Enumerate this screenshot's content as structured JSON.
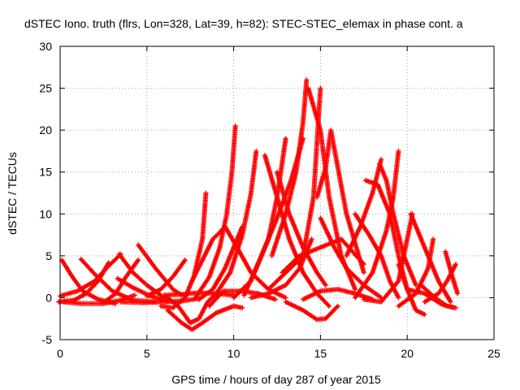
{
  "chart_data": {
    "type": "scatter",
    "title": "dSTEC Iono. truth (flrs, Lon=328, Lat=39, h=82): STEC-STEC_elemax in phase cont. a",
    "xlabel": "GPS time / hours of day 287 of year 2015",
    "ylabel": "dSTEC  / TECUs",
    "xlim": [
      0,
      25
    ],
    "ylim": [
      -5,
      30
    ],
    "xticks": [
      0,
      5,
      10,
      15,
      20,
      25
    ],
    "yticks": [
      -5,
      0,
      5,
      10,
      15,
      20,
      25,
      30
    ],
    "grid": true,
    "marker": "+",
    "marker_color": "#ff0000",
    "series": [
      {
        "x": [
          -0.1,
          0.8,
          1.5,
          2.2,
          2.8
        ],
        "y": [
          -0.5,
          -0.3,
          0.5,
          2.0,
          4.2
        ]
      },
      {
        "x": [
          0.1,
          0.7,
          1.3,
          2.2,
          3.2
        ],
        "y": [
          4.5,
          2.5,
          0.8,
          -0.2,
          -0.7
        ]
      },
      {
        "x": [
          0.0,
          1.0,
          2.0,
          2.8,
          3.5
        ],
        "y": [
          0.2,
          0.8,
          2.0,
          3.8,
          5.2
        ]
      },
      {
        "x": [
          1.2,
          2.0,
          3.0,
          4.2,
          5.5
        ],
        "y": [
          4.6,
          2.8,
          0.8,
          -0.3,
          -0.5
        ]
      },
      {
        "x": [
          0.2,
          1.2,
          2.5,
          3.5,
          4.3
        ],
        "y": [
          -0.5,
          -0.7,
          -0.7,
          -0.3,
          0.3
        ]
      },
      {
        "x": [
          2.5,
          3.2,
          3.8,
          4.5
        ],
        "y": [
          -0.6,
          0.5,
          2.5,
          4.5
        ]
      },
      {
        "x": [
          3.4,
          4.2,
          5.0,
          6.0
        ],
        "y": [
          5.2,
          3.0,
          1.5,
          0.0
        ]
      },
      {
        "x": [
          4.5,
          5.5,
          6.5,
          7.0
        ],
        "y": [
          6.3,
          3.5,
          1.0,
          0.3
        ]
      },
      {
        "x": [
          3.3,
          4.2,
          5.2,
          6.2
        ],
        "y": [
          2.3,
          1.2,
          0.2,
          -0.4
        ]
      },
      {
        "x": [
          5.0,
          5.8,
          6.5,
          7.2
        ],
        "y": [
          0.2,
          1.0,
          2.5,
          4.5
        ]
      },
      {
        "x": [
          3.5,
          4.8,
          6.0,
          7.0,
          8.0
        ],
        "y": [
          -0.5,
          -0.6,
          -0.5,
          -0.4,
          -0.1
        ]
      },
      {
        "x": [
          6.0,
          7.0,
          8.0,
          9.0,
          10.0
        ],
        "y": [
          0.3,
          0.4,
          0.6,
          0.5,
          0.3
        ]
      },
      {
        "x": [
          5.8,
          6.5,
          7.2,
          7.7,
          8.2,
          8.4
        ],
        "y": [
          -1.0,
          -1.2,
          0.0,
          2.5,
          7.0,
          12.5
        ]
      },
      {
        "x": [
          6.0,
          6.8,
          7.5,
          8.0,
          8.5,
          9.0
        ],
        "y": [
          0.3,
          -1.0,
          -3.0,
          -2.5,
          -0.5,
          0.5
        ]
      },
      {
        "x": [
          6.2,
          7.0,
          7.6,
          8.2,
          9.0,
          10.0,
          10.5
        ],
        "y": [
          -1.5,
          -3.0,
          -3.8,
          -3.0,
          -1.8,
          -1.0,
          -1.2
        ]
      },
      {
        "x": [
          8.0,
          8.8,
          9.5,
          10.0,
          10.5
        ],
        "y": [
          -0.2,
          1.0,
          3.5,
          6.0,
          8.5
        ]
      },
      {
        "x": [
          7.8,
          8.6,
          9.2,
          9.6,
          9.9,
          10.1
        ],
        "y": [
          0.0,
          2.5,
          6.0,
          10.0,
          15.0,
          20.5
        ]
      },
      {
        "x": [
          7.6,
          8.2,
          8.8,
          9.2,
          9.5
        ],
        "y": [
          2.0,
          4.5,
          7.0,
          7.8,
          8.5
        ]
      },
      {
        "x": [
          9.5,
          10.2,
          11.0,
          12.0,
          13.0
        ],
        "y": [
          8.5,
          6.0,
          3.0,
          1.0,
          0.0
        ]
      },
      {
        "x": [
          9.0,
          9.8,
          10.5,
          11.0,
          11.3
        ],
        "y": [
          0.5,
          3.0,
          7.5,
          12.5,
          17.5
        ]
      },
      {
        "x": [
          8.6,
          9.4,
          10.4,
          11.4,
          12.4
        ],
        "y": [
          -1.0,
          0.8,
          0.8,
          0.5,
          -0.2
        ]
      },
      {
        "x": [
          10.0,
          11.0,
          12.0,
          12.5,
          13.0
        ],
        "y": [
          0.0,
          2.0,
          7.0,
          12.0,
          19.0
        ]
      },
      {
        "x": [
          10.6,
          11.5,
          12.5,
          13.3,
          14.0
        ],
        "y": [
          0.3,
          4.5,
          9.5,
          14.0,
          19.0
        ]
      },
      {
        "x": [
          12.2,
          13.0,
          13.6,
          14.0,
          14.2
        ],
        "y": [
          5.0,
          10.0,
          15.0,
          21.0,
          26.0
        ]
      },
      {
        "x": [
          11.0,
          12.0,
          13.0,
          13.8,
          14.5
        ],
        "y": [
          0.0,
          0.5,
          1.5,
          3.5,
          7.0
        ]
      },
      {
        "x": [
          12.0,
          13.0,
          14.0,
          14.6,
          15.0
        ],
        "y": [
          1.0,
          3.0,
          5.0,
          12.0,
          25.0
        ]
      },
      {
        "x": [
          11.8,
          12.5,
          13.2,
          14.0,
          14.8,
          15.5
        ],
        "y": [
          17.0,
          12.0,
          7.0,
          3.0,
          0.5,
          -1.0
        ]
      },
      {
        "x": [
          12.5,
          13.2,
          14.0,
          14.8,
          15.3
        ],
        "y": [
          15.0,
          10.0,
          6.0,
          3.0,
          1.5
        ]
      },
      {
        "x": [
          14.3,
          15.0,
          15.5,
          16.2,
          17.0
        ],
        "y": [
          25.0,
          20.0,
          12.0,
          5.0,
          1.0
        ]
      },
      {
        "x": [
          14.8,
          15.3,
          15.6,
          16.5,
          17.5
        ],
        "y": [
          12.0,
          15.5,
          20.0,
          10.0,
          3.0
        ]
      },
      {
        "x": [
          13.0,
          14.0,
          14.8,
          15.3,
          16.0
        ],
        "y": [
          -0.5,
          -1.5,
          -2.6,
          -2.5,
          -1.0
        ]
      },
      {
        "x": [
          12.8,
          13.8,
          15.0,
          16.2,
          17.5
        ],
        "y": [
          3.0,
          5.0,
          6.0,
          7.0,
          4.0
        ]
      },
      {
        "x": [
          15.0,
          15.8,
          16.5,
          17.5,
          18.5
        ],
        "y": [
          9.5,
          6.0,
          3.5,
          1.5,
          0.0
        ]
      },
      {
        "x": [
          14.0,
          15.0,
          16.0,
          17.0,
          18.0
        ],
        "y": [
          -0.2,
          0.8,
          1.0,
          0.5,
          -0.2
        ]
      },
      {
        "x": [
          16.5,
          17.3,
          18.0,
          18.5
        ],
        "y": [
          5.0,
          8.5,
          12.5,
          16.5
        ]
      },
      {
        "x": [
          17.0,
          17.8,
          18.5,
          19.0,
          19.5
        ],
        "y": [
          10.0,
          7.5,
          5.0,
          2.0,
          0.0
        ]
      },
      {
        "x": [
          17.6,
          18.3,
          19.0,
          19.5,
          20.0
        ],
        "y": [
          14.0,
          13.5,
          10.0,
          5.0,
          1.0
        ]
      },
      {
        "x": [
          18.4,
          18.8,
          19.2,
          19.8,
          20.5
        ],
        "y": [
          16.0,
          14.0,
          10.0,
          5.0,
          1.5
        ]
      },
      {
        "x": [
          17.0,
          18.0,
          18.8,
          19.2,
          19.5
        ],
        "y": [
          0.0,
          3.0,
          8.0,
          12.0,
          17.5
        ]
      },
      {
        "x": [
          19.5,
          20.0,
          20.5,
          21.0
        ],
        "y": [
          4.0,
          1.0,
          -1.5,
          -2.0
        ]
      },
      {
        "x": [
          17.5,
          18.5,
          19.5,
          20.3
        ],
        "y": [
          -0.2,
          -0.5,
          2.0,
          10.0
        ]
      },
      {
        "x": [
          20.2,
          21.0,
          21.8,
          22.5
        ],
        "y": [
          10.0,
          6.0,
          2.0,
          -0.5
        ]
      },
      {
        "x": [
          19.5,
          20.5,
          21.2,
          21.5
        ],
        "y": [
          -1.0,
          0.5,
          3.5,
          7.0
        ]
      },
      {
        "x": [
          20.0,
          21.0,
          22.0,
          22.7
        ],
        "y": [
          1.0,
          0.5,
          -0.8,
          -1.2
        ]
      },
      {
        "x": [
          21.0,
          21.8,
          22.3,
          22.8
        ],
        "y": [
          -0.5,
          0.5,
          2.0,
          4.0
        ]
      },
      {
        "x": [
          22.2,
          22.6,
          22.9
        ],
        "y": [
          5.5,
          2.5,
          0.5
        ]
      },
      {
        "x": [
          20.8,
          21.6,
          22.3,
          22.8
        ],
        "y": [
          1.5,
          0.0,
          -1.0,
          -1.2
        ]
      }
    ]
  }
}
